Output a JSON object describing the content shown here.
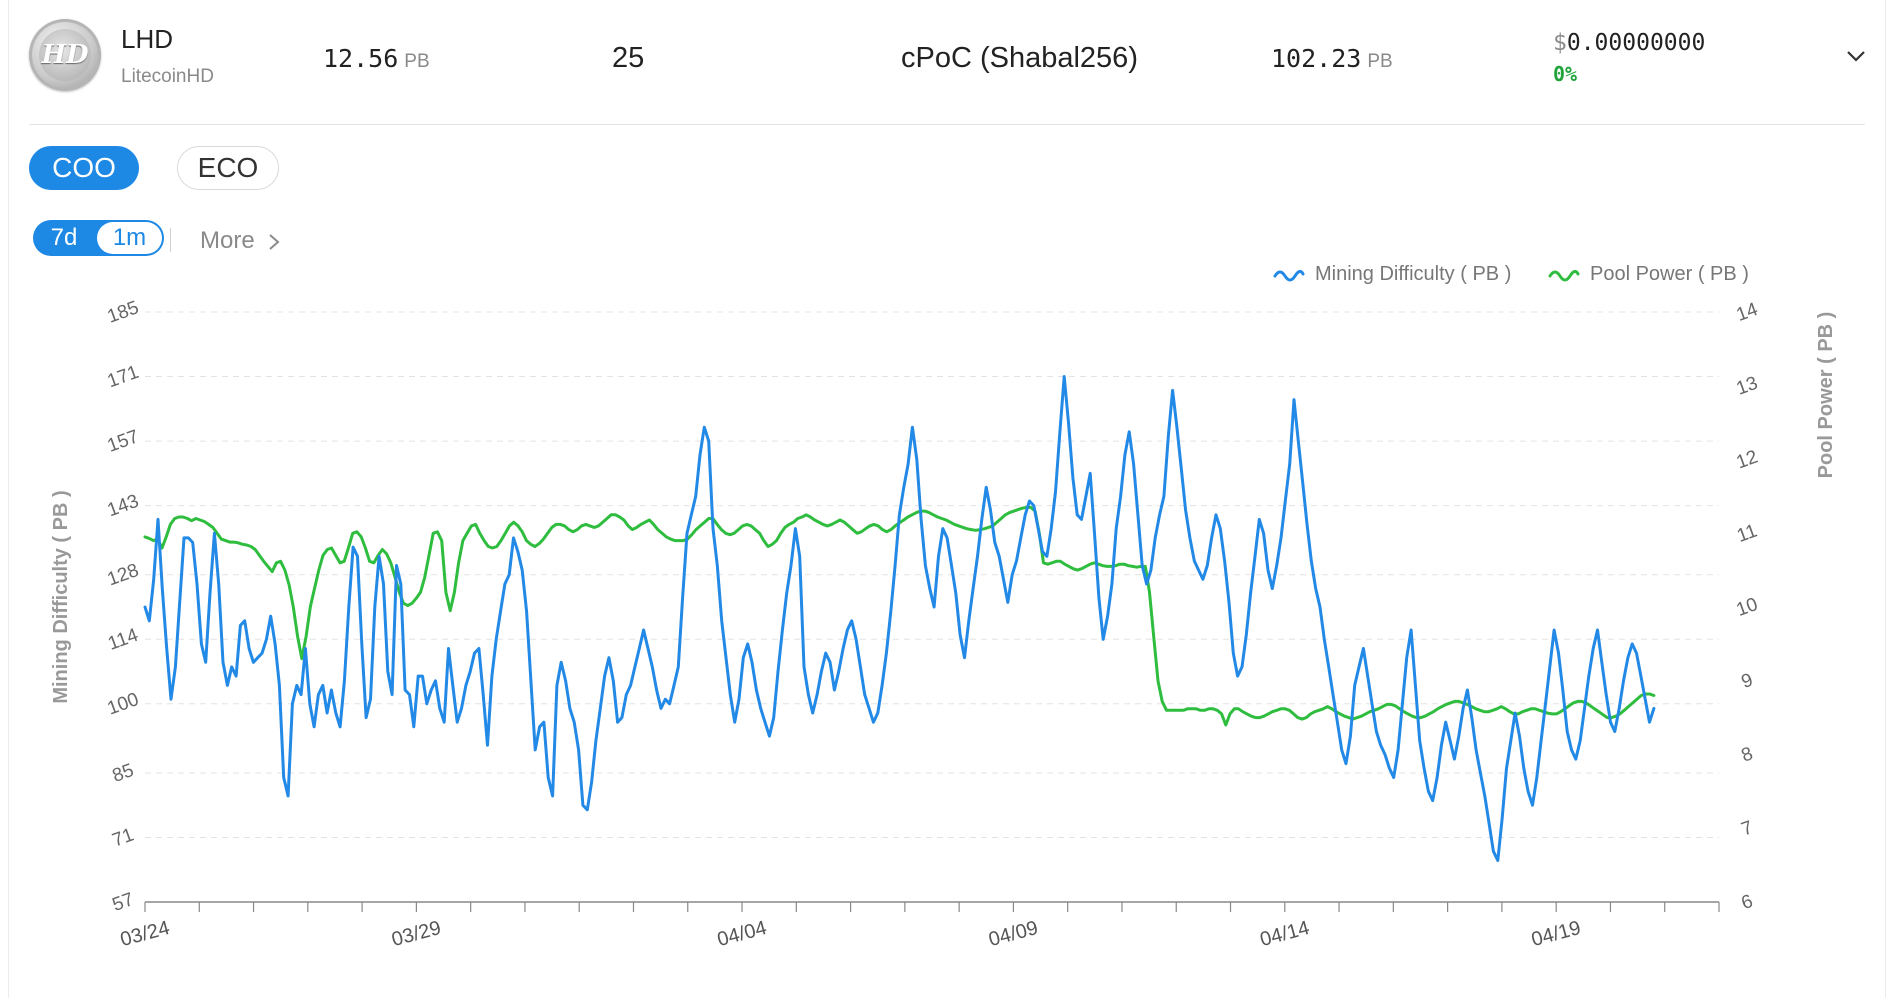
{
  "coin": {
    "symbol": "LHD",
    "name": "LitecoinHD",
    "logo_text": "HD",
    "net_power_value": "12.56",
    "net_power_unit": "PB",
    "count": "25",
    "algorithm": "cPoC (Shabal256)",
    "difficulty_value": "102.23",
    "difficulty_unit": "PB",
    "price_currency": "$",
    "price_value": "0.00000000",
    "change": "0%",
    "expand_icon": "chevron-down-icon"
  },
  "tabs": {
    "primary": [
      {
        "label": "COO",
        "active": true
      },
      {
        "label": "ECO",
        "active": false
      }
    ],
    "range": [
      {
        "label": "7d",
        "active": true
      },
      {
        "label": "1m",
        "active": false
      }
    ],
    "more_label": "More",
    "more_icon": "chevron-right-icon"
  },
  "colors": {
    "accent": "#1e88e5",
    "difficulty_line": "#2389e6",
    "pool_line": "#2ebd3e",
    "positive": "#1fa33a"
  },
  "chart_data": {
    "type": "line",
    "x_start": "03/24",
    "x_end": "04/22",
    "x_ticklabels": [
      "03/24",
      "03/29",
      "04/04",
      "04/09",
      "04/14",
      "04/19"
    ],
    "x_ticklabel_positions": [
      0,
      5,
      11,
      16,
      21,
      26
    ],
    "ylabel_left": "Mining Difficulty ( PB )",
    "ylabel_right": "Pool Power ( PB )",
    "yticks_left": [
      57,
      71,
      85,
      100,
      114,
      128,
      143,
      157,
      171,
      185
    ],
    "yticks_right": [
      6,
      7,
      8,
      9,
      10,
      11,
      12,
      13,
      14
    ],
    "ylim_left": [
      57,
      185
    ],
    "ylim_right": [
      6,
      14
    ],
    "grid": true,
    "legend_position": "top-right",
    "series": [
      {
        "name": "Mining Difficulty ( PB )",
        "axis": "left",
        "values": [
          121,
          118,
          127,
          140,
          125,
          112,
          101,
          108,
          122,
          136,
          136,
          135,
          126,
          113,
          109,
          124,
          137,
          126,
          109,
          104,
          108,
          106,
          117,
          118,
          112,
          109,
          110,
          111,
          114,
          119,
          113,
          104,
          84,
          80,
          100,
          104,
          102,
          112,
          100,
          95,
          102,
          104,
          98,
          103,
          98,
          95,
          105,
          121,
          134,
          132,
          113,
          97,
          101,
          121,
          132,
          126,
          107,
          102,
          130,
          126,
          103,
          102,
          95,
          106,
          106,
          100,
          103,
          105,
          99,
          96,
          112,
          104,
          96,
          99,
          104,
          107,
          111,
          112,
          102,
          91,
          106,
          114,
          120,
          126,
          128,
          136,
          133,
          129,
          120,
          105,
          90,
          95,
          96,
          84,
          80,
          104,
          109,
          105,
          99,
          96,
          90,
          78,
          77,
          83,
          92,
          99,
          106,
          110,
          105,
          96,
          97,
          102,
          104,
          108,
          112,
          116,
          112,
          108,
          103,
          99,
          101,
          100,
          104,
          108,
          123,
          137,
          141,
          145,
          154,
          160,
          157,
          138,
          130,
          118,
          110,
          102,
          96,
          101,
          110,
          113,
          109,
          103,
          99,
          96,
          93,
          97,
          107,
          116,
          124,
          130,
          138,
          132,
          108,
          102,
          98,
          102,
          107,
          111,
          109,
          103,
          107,
          112,
          116,
          118,
          114,
          108,
          102,
          99,
          96,
          98,
          104,
          111,
          120,
          130,
          141,
          147,
          152,
          160,
          153,
          140,
          130,
          125,
          121,
          132,
          138,
          136,
          130,
          124,
          115,
          110,
          118,
          125,
          132,
          140,
          147,
          142,
          135,
          132,
          127,
          122,
          128,
          131,
          136,
          141,
          144,
          143,
          138,
          133,
          132,
          138,
          146,
          159,
          171,
          161,
          149,
          141,
          140,
          145,
          150,
          137,
          123,
          114,
          119,
          126,
          138,
          145,
          154,
          159,
          152,
          141,
          130,
          126,
          129,
          136,
          141,
          145,
          158,
          168,
          160,
          151,
          142,
          136,
          131,
          129,
          127,
          130,
          136,
          141,
          138,
          131,
          122,
          111,
          106,
          108,
          115,
          124,
          132,
          140,
          137,
          129,
          125,
          130,
          136,
          144,
          152,
          166,
          157,
          148,
          139,
          131,
          125,
          121,
          114,
          108,
          102,
          96,
          90,
          87,
          93,
          104,
          108,
          112,
          106,
          100,
          94,
          91,
          89,
          86,
          84,
          90,
          100,
          110,
          116,
          104,
          92,
          86,
          81,
          79,
          84,
          91,
          96,
          92,
          88,
          93,
          99,
          103,
          97,
          90,
          85,
          80,
          74,
          68,
          66,
          75,
          86,
          92,
          98,
          93,
          86,
          81,
          78,
          84,
          92,
          100,
          108,
          116,
          111,
          103,
          94,
          90,
          88,
          92,
          99,
          106,
          112,
          116,
          109,
          102,
          96,
          94,
          99,
          105,
          110,
          113,
          111,
          106,
          101,
          96,
          99
        ]
      },
      {
        "name": "Pool Power ( PB )",
        "axis": "right",
        "values": [
          10.95,
          10.93,
          10.9,
          10.92,
          10.8,
          10.95,
          11.12,
          11.2,
          11.22,
          11.22,
          11.2,
          11.17,
          11.2,
          11.18,
          11.16,
          11.12,
          11.08,
          11.0,
          10.92,
          10.9,
          10.88,
          10.88,
          10.87,
          10.85,
          10.84,
          10.82,
          10.78,
          10.7,
          10.62,
          10.55,
          10.48,
          10.6,
          10.62,
          10.5,
          10.3,
          10.0,
          9.6,
          9.3,
          9.6,
          10.0,
          10.25,
          10.5,
          10.7,
          10.78,
          10.8,
          10.7,
          10.6,
          10.62,
          10.8,
          11.0,
          11.02,
          10.95,
          10.8,
          10.62,
          10.6,
          10.7,
          10.78,
          10.72,
          10.6,
          10.4,
          10.2,
          10.05,
          10.02,
          10.05,
          10.12,
          10.2,
          10.4,
          10.7,
          11.0,
          11.02,
          10.9,
          10.2,
          9.95,
          10.2,
          10.6,
          10.9,
          11.0,
          11.1,
          11.12,
          11.0,
          10.9,
          10.82,
          10.8,
          10.82,
          10.9,
          11.0,
          11.1,
          11.15,
          11.1,
          11.02,
          10.9,
          10.85,
          10.82,
          10.86,
          10.92,
          11.0,
          11.08,
          11.12,
          11.12,
          11.1,
          11.05,
          11.02,
          11.05,
          11.1,
          11.12,
          11.1,
          11.08,
          11.1,
          11.15,
          11.2,
          11.25,
          11.25,
          11.22,
          11.18,
          11.1,
          11.05,
          11.08,
          11.12,
          11.15,
          11.18,
          11.12,
          11.05,
          11.0,
          10.95,
          10.92,
          10.9,
          10.9,
          10.9,
          10.92,
          10.98,
          11.05,
          11.1,
          11.15,
          11.2,
          11.2,
          11.12,
          11.05,
          11.0,
          10.98,
          11.0,
          11.05,
          11.1,
          11.12,
          11.1,
          11.05,
          11.0,
          10.9,
          10.82,
          10.85,
          10.9,
          11.0,
          11.08,
          11.12,
          11.15,
          11.2,
          11.22,
          11.25,
          11.22,
          11.18,
          11.15,
          11.12,
          11.1,
          11.12,
          11.15,
          11.18,
          11.15,
          11.1,
          11.05,
          11.0,
          11.02,
          11.06,
          11.1,
          11.12,
          11.1,
          11.05,
          11.02,
          11.05,
          11.1,
          11.14,
          11.18,
          11.22,
          11.25,
          11.28,
          11.3,
          11.3,
          11.28,
          11.25,
          11.22,
          11.2,
          11.18,
          11.15,
          11.12,
          11.1,
          11.08,
          11.06,
          11.05,
          11.04,
          11.05,
          11.06,
          11.08,
          11.1,
          11.15,
          11.2,
          11.25,
          11.28,
          11.3,
          11.32,
          11.34,
          11.35,
          11.35,
          11.3,
          11.0,
          10.6,
          10.58,
          10.6,
          10.62,
          10.62,
          10.58,
          10.55,
          10.52,
          10.5,
          10.52,
          10.55,
          10.58,
          10.6,
          10.58,
          10.56,
          10.55,
          10.55,
          10.56,
          10.58,
          10.58,
          10.56,
          10.55,
          10.54,
          10.55,
          10.55,
          10.2,
          9.6,
          9.0,
          8.72,
          8.6,
          8.6,
          8.6,
          8.6,
          8.6,
          8.62,
          8.62,
          8.62,
          8.6,
          8.6,
          8.62,
          8.62,
          8.6,
          8.55,
          8.4,
          8.55,
          8.62,
          8.62,
          8.58,
          8.55,
          8.52,
          8.5,
          8.5,
          8.52,
          8.55,
          8.58,
          8.6,
          8.62,
          8.62,
          8.6,
          8.55,
          8.5,
          8.48,
          8.5,
          8.55,
          8.58,
          8.6,
          8.62,
          8.65,
          8.62,
          8.58,
          8.55,
          8.52,
          8.5,
          8.48,
          8.5,
          8.52,
          8.55,
          8.58,
          8.6,
          8.62,
          8.65,
          8.68,
          8.68,
          8.66,
          8.62,
          8.58,
          8.55,
          8.52,
          8.5,
          8.5,
          8.52,
          8.55,
          8.58,
          8.62,
          8.65,
          8.68,
          8.7,
          8.72,
          8.72,
          8.7,
          8.68,
          8.65,
          8.62,
          8.6,
          8.58,
          8.58,
          8.6,
          8.62,
          8.65,
          8.62,
          8.58,
          8.55,
          8.55,
          8.58,
          8.6,
          8.62,
          8.62,
          8.6,
          8.58,
          8.56,
          8.55,
          8.55,
          8.58,
          8.62,
          8.66,
          8.7,
          8.72,
          8.72,
          8.7,
          8.66,
          8.62,
          8.58,
          8.54,
          8.5,
          8.5,
          8.52,
          8.55,
          8.6,
          8.65,
          8.7,
          8.75,
          8.8,
          8.82,
          8.82,
          8.8
        ]
      }
    ]
  }
}
